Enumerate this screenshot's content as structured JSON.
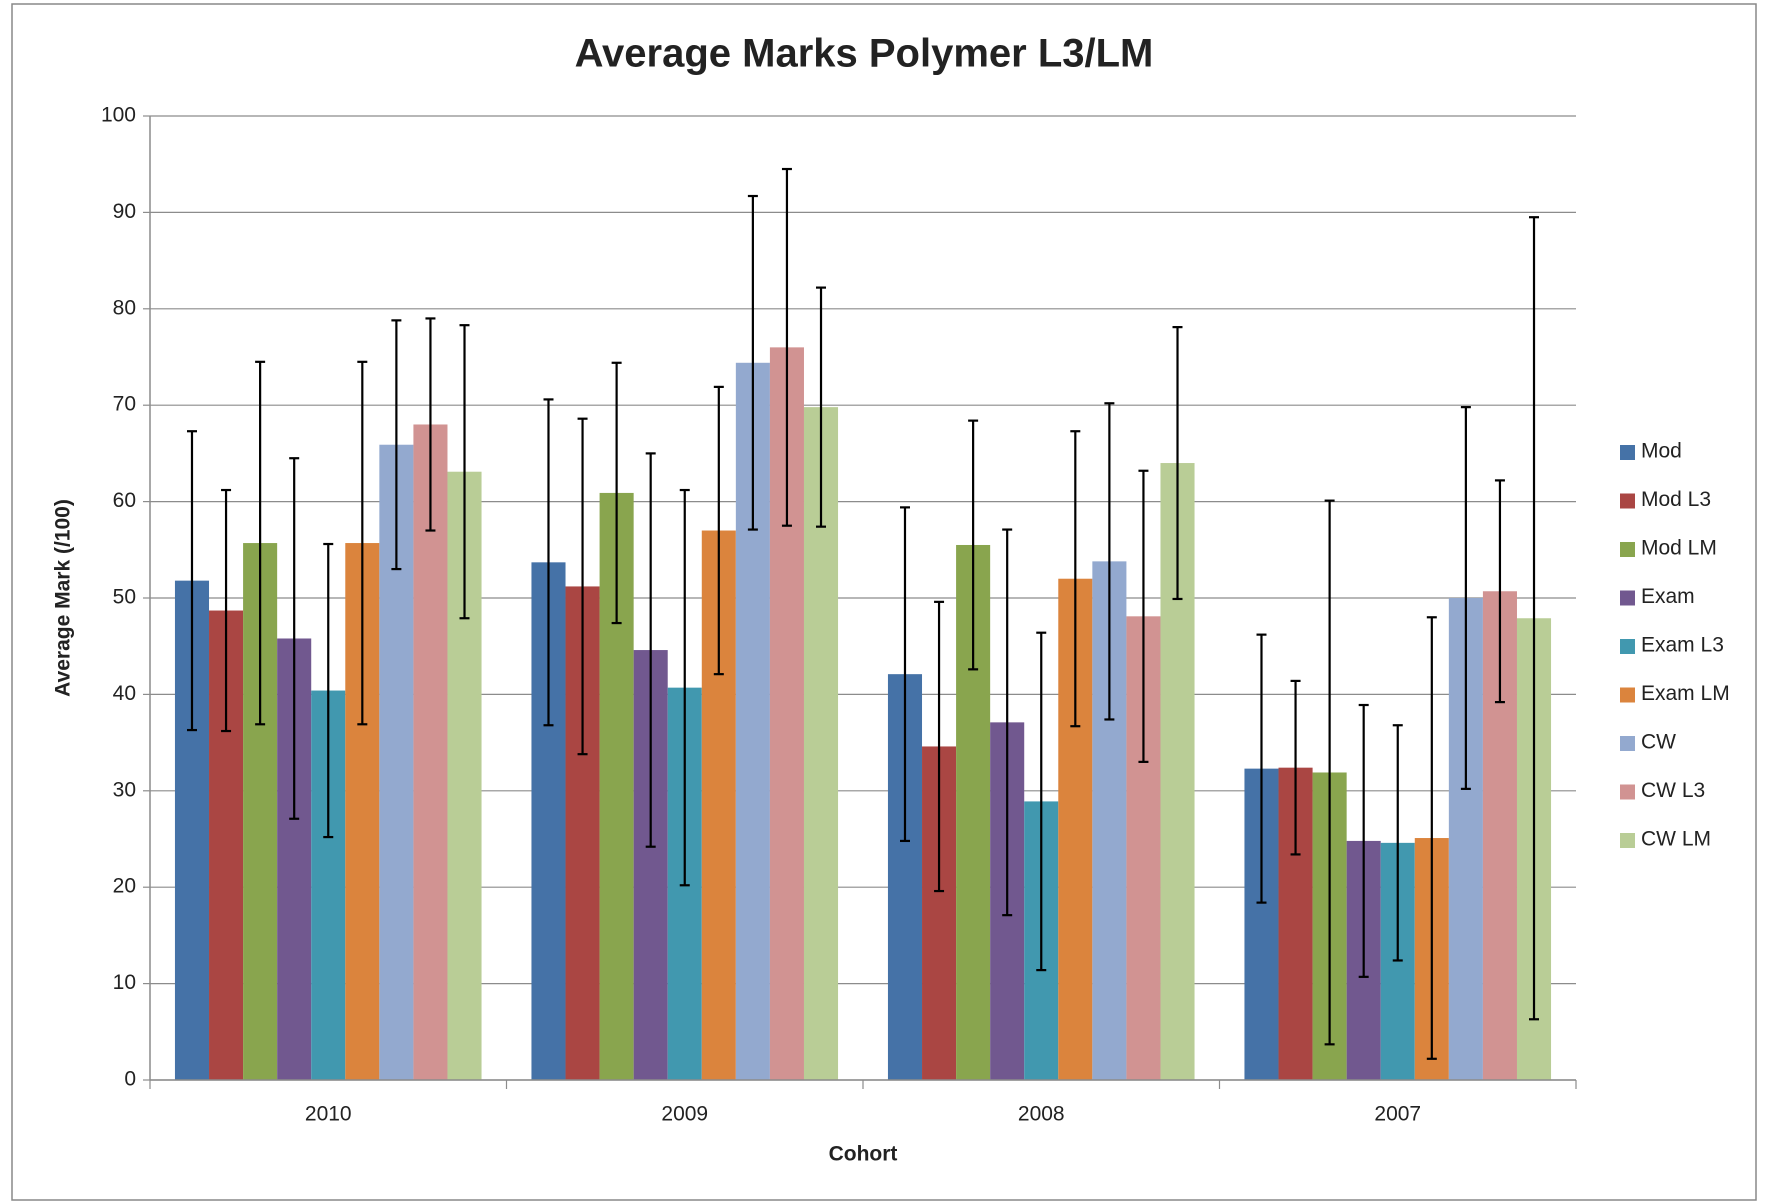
{
  "chart_data": {
    "type": "bar",
    "title": "Average Marks Polymer L3/LM",
    "xlabel": "Cohort",
    "ylabel": "Average Mark (/100)",
    "categories": [
      "2010",
      "2009",
      "2008",
      "2007"
    ],
    "ylim": [
      0,
      100
    ],
    "yticks": [
      0,
      10,
      20,
      30,
      40,
      50,
      60,
      70,
      80,
      90,
      100
    ],
    "grid": true,
    "legend": "right",
    "series": [
      {
        "name": "Mod",
        "color": "#4572A7",
        "values": [
          51.8,
          53.7,
          42.1,
          32.3
        ],
        "errors": [
          15.5,
          16.9,
          17.3,
          13.9
        ]
      },
      {
        "name": "Mod L3",
        "color": "#AA4643",
        "values": [
          48.7,
          51.2,
          34.6,
          32.4
        ],
        "errors": [
          12.5,
          17.4,
          15.0,
          9.0
        ]
      },
      {
        "name": "Mod LM",
        "color": "#89A54E",
        "values": [
          55.7,
          60.9,
          55.5,
          31.9
        ],
        "errors": [
          18.8,
          13.5,
          12.9,
          28.2
        ]
      },
      {
        "name": "Exam",
        "color": "#71588F",
        "values": [
          45.8,
          44.6,
          37.1,
          24.8
        ],
        "errors": [
          18.7,
          20.4,
          20.0,
          14.1
        ]
      },
      {
        "name": "Exam L3",
        "color": "#4198AF",
        "values": [
          40.4,
          40.7,
          28.9,
          24.6
        ],
        "errors": [
          15.2,
          20.5,
          17.5,
          12.2
        ]
      },
      {
        "name": "Exam LM",
        "color": "#DB843D",
        "values": [
          55.7,
          57.0,
          52.0,
          25.1
        ],
        "errors": [
          18.8,
          14.9,
          15.3,
          22.9
        ]
      },
      {
        "name": "CW",
        "color": "#93A9CF",
        "values": [
          65.9,
          74.4,
          53.8,
          50.0
        ],
        "errors": [
          12.9,
          17.3,
          16.4,
          19.8
        ]
      },
      {
        "name": "CW L3",
        "color": "#D19392",
        "values": [
          68.0,
          76.0,
          48.1,
          50.7
        ],
        "errors": [
          11.0,
          18.5,
          15.1,
          11.5
        ]
      },
      {
        "name": "CW LM",
        "color": "#B9CD96",
        "values": [
          63.1,
          69.8,
          64.0,
          47.9
        ],
        "errors": [
          15.2,
          12.4,
          14.1,
          41.6
        ]
      }
    ]
  }
}
